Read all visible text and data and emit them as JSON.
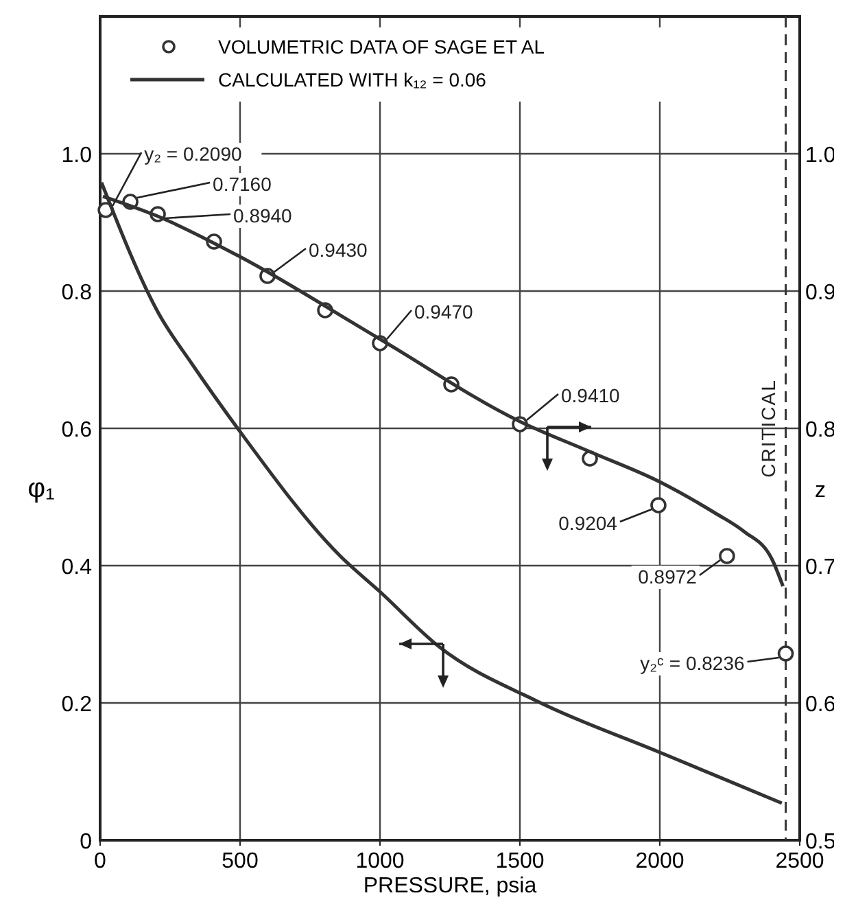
{
  "chart_data": {
    "type": "line",
    "xlabel": "PRESSURE, psia",
    "ylabel": "φ₁",
    "y2label": "z",
    "xlim": [
      0,
      2500
    ],
    "xticks": [
      0,
      500,
      1000,
      1500,
      2000,
      2500
    ],
    "ylim": [
      0,
      1.2
    ],
    "yticks": [
      0,
      0.2,
      0.4,
      0.6,
      0.8,
      {
        "value": 1.0,
        "label": "1.0"
      }
    ],
    "y2lim": [
      0.5,
      1.1
    ],
    "y2ticks": [
      0.5,
      0.6,
      0.7,
      0.8,
      0.9,
      {
        "value": 1.0,
        "label": "1.0"
      }
    ],
    "grid": true,
    "legend": "top left",
    "series": [
      {
        "type": "scatter",
        "name": "VOLUMETRIC DATA OF SAGE ET AL",
        "color": "#333333",
        "axis": "y2",
        "marker": "circle",
        "x": [
          20,
          108,
          206,
          407,
          598,
          804,
          1000,
          1255,
          1500,
          1750,
          1995,
          2240,
          2450
        ],
        "values": [
          0.959,
          0.965,
          0.956,
          0.936,
          0.911,
          0.886,
          0.862,
          0.832,
          0.803,
          0.778,
          0.744,
          0.707,
          0.636
        ]
      },
      {
        "type": "line",
        "name": "CALCULATED WITH k₁₂ = 0.06",
        "color": "#333333",
        "axis": "y2",
        "line_style": "solid",
        "marker": "none",
        "x": [
          10,
          200,
          500,
          1000,
          1500,
          1750,
          2000,
          2200,
          2300,
          2400,
          2440
        ],
        "values": [
          0.969,
          0.955,
          0.925,
          0.865,
          0.805,
          0.783,
          0.761,
          0.738,
          0.725,
          0.705,
          0.685
        ]
      },
      {
        "type": "line",
        "color": "#333333",
        "line_style": "solid",
        "marker": "none",
        "x": [
          5,
          211,
          328,
          495,
          858,
          1000,
          1211,
          1564,
          2000,
          2436
        ],
        "values": [
          0.958,
          0.766,
          0.694,
          0.598,
          0.414,
          0.362,
          0.282,
          0.202,
          0.128,
          0.054
        ]
      }
    ],
    "ref_lines": [
      {
        "axis": "x",
        "value": 2450,
        "label": "CRITICAL",
        "line_style": "dashed",
        "color": "#333333"
      }
    ],
    "annotations": [
      {
        "text": "y₂ = 0.2090",
        "x": 20,
        "y": 0.918
      },
      {
        "text": "0.7160",
        "x": 108,
        "y": 0.93
      },
      {
        "text": "0.8940",
        "x": 206,
        "y": 0.912
      },
      {
        "text": "0.9430",
        "x": 598,
        "y": 0.822
      },
      {
        "text": "0.9470",
        "x": 1000,
        "y": 0.724
      },
      {
        "text": "0.9410",
        "x": 1500,
        "y": 0.606
      },
      {
        "text": "0.9204",
        "x": 1995,
        "y": 0.488
      },
      {
        "text": "0.8972",
        "x": 2240,
        "y": 0.414
      },
      {
        "text": "y₂ᶜ = 0.8236",
        "x": 2450,
        "y": 0.272
      }
    ]
  }
}
